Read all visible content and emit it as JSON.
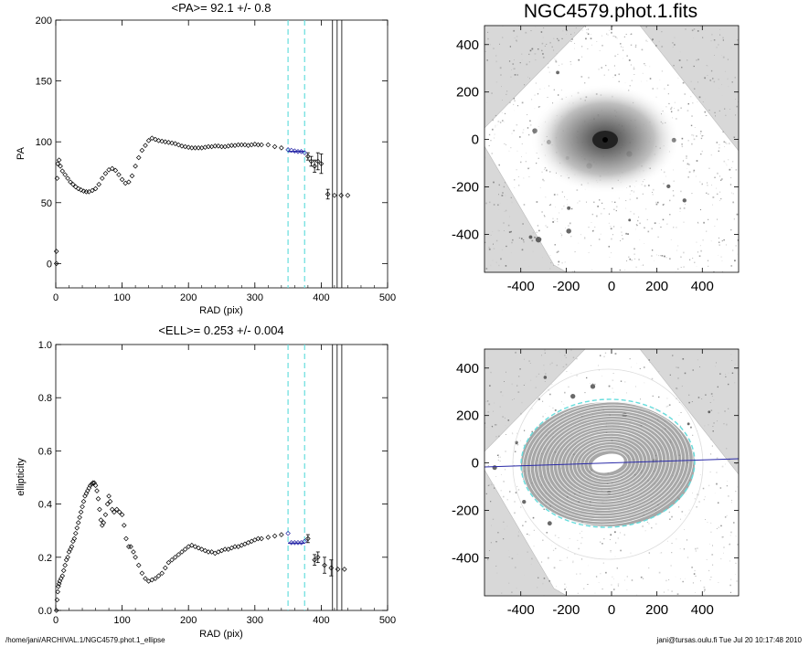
{
  "figure": {
    "image_title": "NGC4579.phot.1.fits",
    "footer_left": "/home/jani/ARCHIVAL.1/NGC4579.phot.1_ellipse",
    "footer_right": "jani@tursas.oulu.fi  Tue Jul 20 10:17:48 2010"
  },
  "chart_data": [
    {
      "type": "scatter",
      "title": "<PA>=  92.1 +/-   0.8",
      "xlabel": "RAD (pix)",
      "ylabel": "PA",
      "xlim": [
        0,
        500
      ],
      "ylim": [
        -20,
        200
      ],
      "xticks": [
        0,
        100,
        200,
        300,
        400,
        500
      ],
      "yticks": [
        0,
        50,
        100,
        150,
        200
      ],
      "cyan_dashed_x": [
        350,
        375
      ],
      "black_vertical_x": [
        417,
        424,
        431
      ],
      "fit_segment": {
        "x": [
          350,
          375
        ],
        "y": [
          92.1,
          92.1
        ],
        "color": "#2a2aa8"
      },
      "points": [
        [
          1,
          0
        ],
        [
          1,
          10
        ],
        [
          2,
          70
        ],
        [
          3,
          82
        ],
        [
          5,
          85
        ],
        [
          7,
          80
        ],
        [
          10,
          76
        ],
        [
          14,
          73
        ],
        [
          18,
          70
        ],
        [
          22,
          67
        ],
        [
          26,
          65
        ],
        [
          30,
          63
        ],
        [
          34,
          61.5
        ],
        [
          38,
          60.5
        ],
        [
          42,
          59.5
        ],
        [
          46,
          59
        ],
        [
          50,
          59
        ],
        [
          55,
          60
        ],
        [
          60,
          61.5
        ],
        [
          65,
          65
        ],
        [
          70,
          70
        ],
        [
          75,
          74
        ],
        [
          80,
          77
        ],
        [
          85,
          78
        ],
        [
          90,
          76.5
        ],
        [
          95,
          73
        ],
        [
          100,
          69
        ],
        [
          105,
          66
        ],
        [
          110,
          67
        ],
        [
          115,
          72
        ],
        [
          120,
          80
        ],
        [
          125,
          87
        ],
        [
          130,
          93
        ],
        [
          135,
          97
        ],
        [
          140,
          101
        ],
        [
          145,
          103
        ],
        [
          150,
          102
        ],
        [
          155,
          101
        ],
        [
          160,
          100.5
        ],
        [
          165,
          100
        ],
        [
          170,
          99.5
        ],
        [
          175,
          99
        ],
        [
          180,
          98.5
        ],
        [
          185,
          97.5
        ],
        [
          190,
          96.5
        ],
        [
          195,
          96
        ],
        [
          200,
          95.5
        ],
        [
          205,
          95
        ],
        [
          210,
          95
        ],
        [
          215,
          95
        ],
        [
          220,
          95
        ],
        [
          225,
          95.5
        ],
        [
          230,
          96
        ],
        [
          235,
          96
        ],
        [
          240,
          96.5
        ],
        [
          245,
          96.5
        ],
        [
          250,
          96
        ],
        [
          255,
          96
        ],
        [
          260,
          96.5
        ],
        [
          265,
          97
        ],
        [
          270,
          97
        ],
        [
          275,
          97.5
        ],
        [
          280,
          97.5
        ],
        [
          285,
          97.5
        ],
        [
          290,
          97
        ],
        [
          295,
          97.5
        ],
        [
          300,
          98
        ],
        [
          305,
          97.5
        ],
        [
          310,
          97.5
        ],
        [
          320,
          97.5
        ],
        [
          330,
          96
        ],
        [
          340,
          95
        ],
        [
          350,
          93.5
        ],
        [
          355,
          93
        ],
        [
          360,
          92.5
        ],
        [
          365,
          92
        ],
        [
          370,
          92
        ],
        [
          375,
          91
        ],
        [
          380,
          88
        ],
        [
          385,
          84
        ],
        [
          390,
          80
        ],
        [
          395,
          84
        ],
        [
          400,
          82
        ],
        [
          410,
          57
        ],
        [
          420,
          56
        ],
        [
          430,
          56
        ],
        [
          440,
          56
        ]
      ],
      "error_bars": [
        {
          "x": 380,
          "y": 88,
          "err": 3
        },
        {
          "x": 385,
          "y": 84,
          "err": 4
        },
        {
          "x": 390,
          "y": 80,
          "err": 5
        },
        {
          "x": 395,
          "y": 84,
          "err": 7
        },
        {
          "x": 400,
          "y": 82,
          "err": 8
        },
        {
          "x": 410,
          "y": 57,
          "err": 4
        }
      ]
    },
    {
      "type": "scatter",
      "title": "<ELL>= 0.253 +/-  0.004",
      "xlabel": "RAD (pix)",
      "ylabel": "ellipticity",
      "xlim": [
        0,
        500
      ],
      "ylim": [
        0,
        1.0
      ],
      "xticks": [
        0,
        100,
        200,
        300,
        400,
        500
      ],
      "yticks": [
        0.0,
        0.2,
        0.4,
        0.6,
        0.8,
        1.0
      ],
      "cyan_dashed_x": [
        350,
        375
      ],
      "black_vertical_x": [
        417,
        424,
        431
      ],
      "fit_segment": {
        "x": [
          350,
          375
        ],
        "y": [
          0.253,
          0.253
        ],
        "color": "#2a2aa8"
      },
      "points": [
        [
          1,
          0.0
        ],
        [
          2,
          0.04
        ],
        [
          3,
          0.07
        ],
        [
          4,
          0.09
        ],
        [
          5,
          0.1
        ],
        [
          6,
          0.11
        ],
        [
          8,
          0.12
        ],
        [
          10,
          0.13
        ],
        [
          12,
          0.15
        ],
        [
          14,
          0.17
        ],
        [
          16,
          0.19
        ],
        [
          18,
          0.2
        ],
        [
          20,
          0.22
        ],
        [
          22,
          0.23
        ],
        [
          24,
          0.24
        ],
        [
          26,
          0.26
        ],
        [
          28,
          0.27
        ],
        [
          30,
          0.29
        ],
        [
          32,
          0.31
        ],
        [
          34,
          0.33
        ],
        [
          36,
          0.35
        ],
        [
          38,
          0.37
        ],
        [
          40,
          0.39
        ],
        [
          42,
          0.41
        ],
        [
          44,
          0.43
        ],
        [
          46,
          0.44
        ],
        [
          48,
          0.45
        ],
        [
          50,
          0.46
        ],
        [
          52,
          0.47
        ],
        [
          54,
          0.475
        ],
        [
          56,
          0.48
        ],
        [
          58,
          0.48
        ],
        [
          60,
          0.47
        ],
        [
          62,
          0.45
        ],
        [
          64,
          0.42
        ],
        [
          66,
          0.38
        ],
        [
          68,
          0.34
        ],
        [
          70,
          0.32
        ],
        [
          72,
          0.33
        ],
        [
          75,
          0.36
        ],
        [
          78,
          0.4
        ],
        [
          80,
          0.43
        ],
        [
          82,
          0.41
        ],
        [
          85,
          0.38
        ],
        [
          88,
          0.37
        ],
        [
          92,
          0.38
        ],
        [
          96,
          0.37
        ],
        [
          100,
          0.36
        ],
        [
          103,
          0.32
        ],
        [
          106,
          0.27
        ],
        [
          110,
          0.24
        ],
        [
          113,
          0.24
        ],
        [
          117,
          0.22
        ],
        [
          120,
          0.2
        ],
        [
          125,
          0.17
        ],
        [
          130,
          0.14
        ],
        [
          135,
          0.12
        ],
        [
          140,
          0.11
        ],
        [
          145,
          0.115
        ],
        [
          150,
          0.12
        ],
        [
          155,
          0.13
        ],
        [
          160,
          0.14
        ],
        [
          165,
          0.16
        ],
        [
          170,
          0.18
        ],
        [
          175,
          0.19
        ],
        [
          180,
          0.2
        ],
        [
          185,
          0.21
        ],
        [
          190,
          0.22
        ],
        [
          195,
          0.23
        ],
        [
          200,
          0.24
        ],
        [
          205,
          0.245
        ],
        [
          210,
          0.24
        ],
        [
          215,
          0.235
        ],
        [
          220,
          0.23
        ],
        [
          225,
          0.225
        ],
        [
          230,
          0.22
        ],
        [
          235,
          0.22
        ],
        [
          240,
          0.215
        ],
        [
          245,
          0.22
        ],
        [
          250,
          0.225
        ],
        [
          255,
          0.23
        ],
        [
          260,
          0.23
        ],
        [
          265,
          0.235
        ],
        [
          270,
          0.24
        ],
        [
          275,
          0.24
        ],
        [
          280,
          0.245
        ],
        [
          285,
          0.25
        ],
        [
          290,
          0.255
        ],
        [
          295,
          0.26
        ],
        [
          300,
          0.265
        ],
        [
          305,
          0.27
        ],
        [
          310,
          0.27
        ],
        [
          320,
          0.275
        ],
        [
          330,
          0.28
        ],
        [
          340,
          0.285
        ],
        [
          350,
          0.29
        ],
        [
          355,
          0.255
        ],
        [
          360,
          0.255
        ],
        [
          365,
          0.255
        ],
        [
          370,
          0.255
        ],
        [
          375,
          0.26
        ],
        [
          380,
          0.27
        ],
        [
          390,
          0.19
        ],
        [
          395,
          0.2
        ],
        [
          405,
          0.17
        ],
        [
          415,
          0.16
        ],
        [
          425,
          0.155
        ],
        [
          435,
          0.155
        ]
      ],
      "error_bars": [
        {
          "x": 380,
          "y": 0.27,
          "err": 0.015
        },
        {
          "x": 390,
          "y": 0.19,
          "err": 0.02
        },
        {
          "x": 395,
          "y": 0.2,
          "err": 0.02
        },
        {
          "x": 405,
          "y": 0.17,
          "err": 0.03
        },
        {
          "x": 415,
          "y": 0.16,
          "err": 0.03
        }
      ]
    }
  ],
  "image_panels": [
    {
      "name": "image-panel-top",
      "xticks": [
        -400,
        -200,
        0,
        200,
        400
      ],
      "yticks": [
        -400,
        -200,
        0,
        200,
        400
      ],
      "xlim": [
        -560,
        560
      ],
      "ylim": [
        -560,
        480
      ]
    },
    {
      "name": "image-panel-bottom",
      "xticks": [
        -400,
        -200,
        0,
        200,
        400
      ],
      "yticks": [
        -400,
        -200,
        0,
        200,
        400
      ],
      "xlim": [
        -560,
        560
      ],
      "ylim": [
        -560,
        480
      ]
    }
  ],
  "colors": {
    "cyan": "#66dddd",
    "fit_blue": "#2a2aa8",
    "grey_background": "#d8d8d8"
  }
}
